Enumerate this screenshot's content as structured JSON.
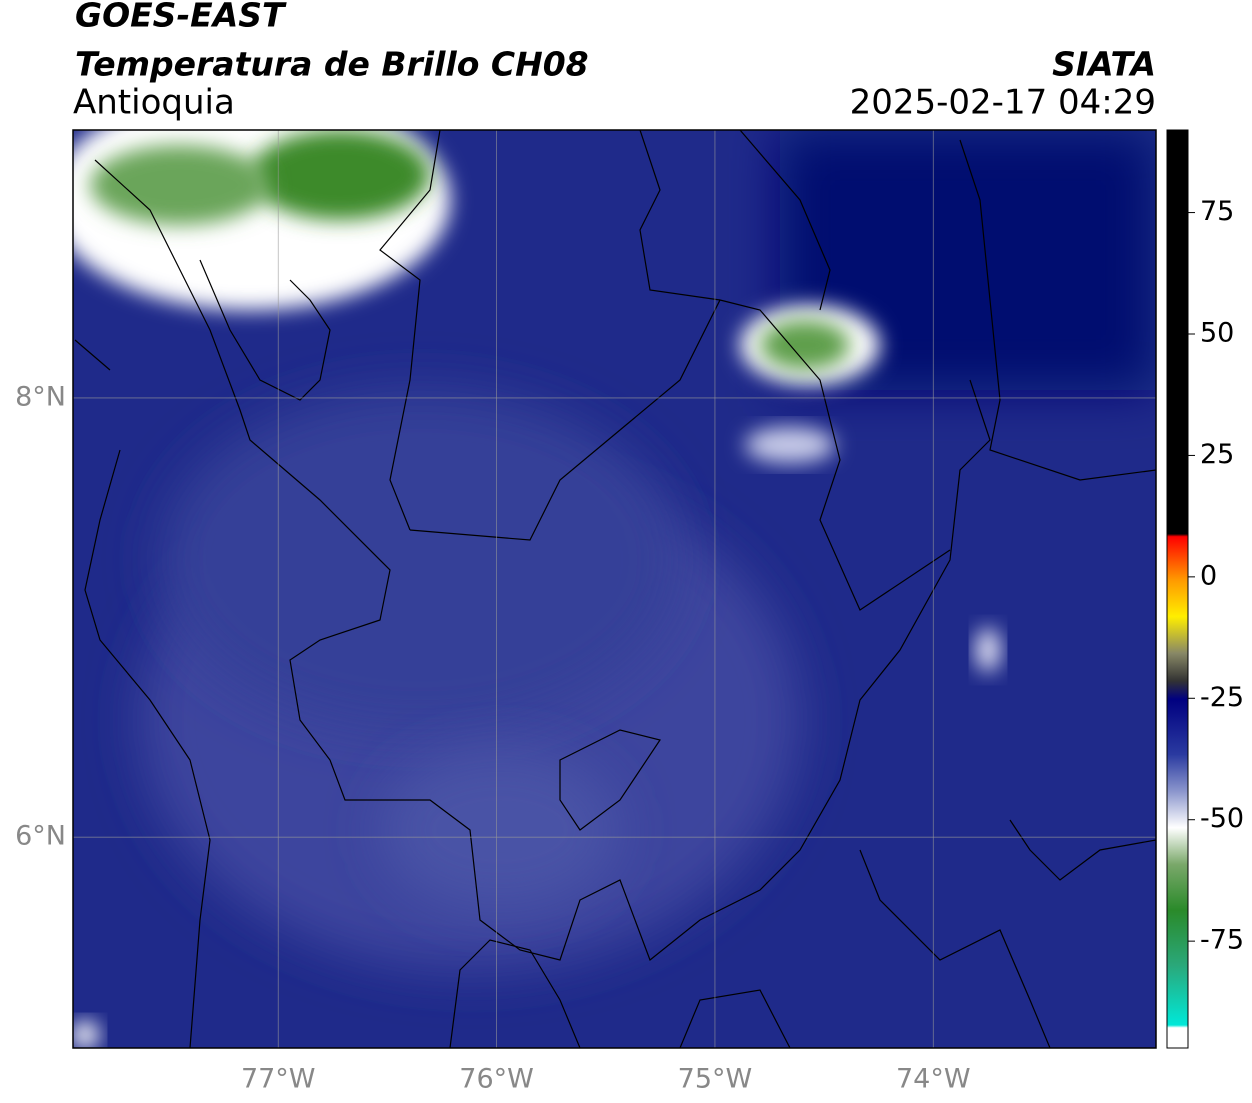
{
  "header": {
    "satellite": "GOES-EAST",
    "product": "Temperatura de Brillo CH08",
    "region": "Antioquia",
    "source": "SIATA",
    "datetime": "2025-02-17 04:29"
  },
  "map": {
    "lonlim": [
      -77.94,
      -72.98
    ],
    "latlim": [
      5.04,
      9.22
    ],
    "xticks": [
      {
        "value": -77,
        "label": "77°W"
      },
      {
        "value": -76,
        "label": "76°W"
      },
      {
        "value": -75,
        "label": "75°W"
      },
      {
        "value": -74,
        "label": "74°W"
      }
    ],
    "yticks": [
      {
        "value": 6,
        "label": "6°N"
      },
      {
        "value": 8,
        "label": "8°N"
      }
    ]
  },
  "colorbar": {
    "lim": [
      -97,
      92
    ],
    "ticks": [
      75,
      50,
      25,
      0,
      -25,
      -50,
      -75
    ]
  }
}
